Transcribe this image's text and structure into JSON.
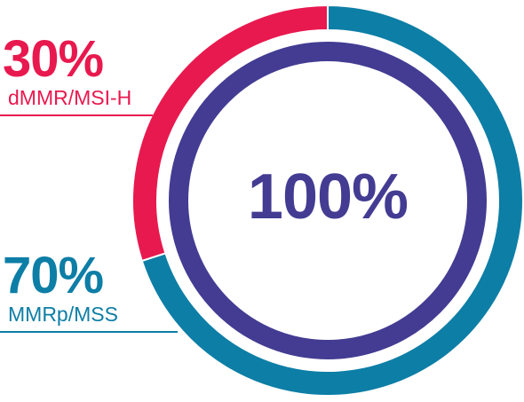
{
  "chart_data": {
    "type": "pie",
    "center_label": "100%",
    "slices": [
      {
        "percent": 30,
        "value_label": "30%",
        "category": "dMMR/MSI-H",
        "color": "#e8194f"
      },
      {
        "percent": 70,
        "value_label": "70%",
        "category": "MMRp/MSS",
        "color": "#0d7ea6"
      }
    ],
    "inner_ring_color": "#433c92",
    "center_text_color": "#433c92"
  }
}
